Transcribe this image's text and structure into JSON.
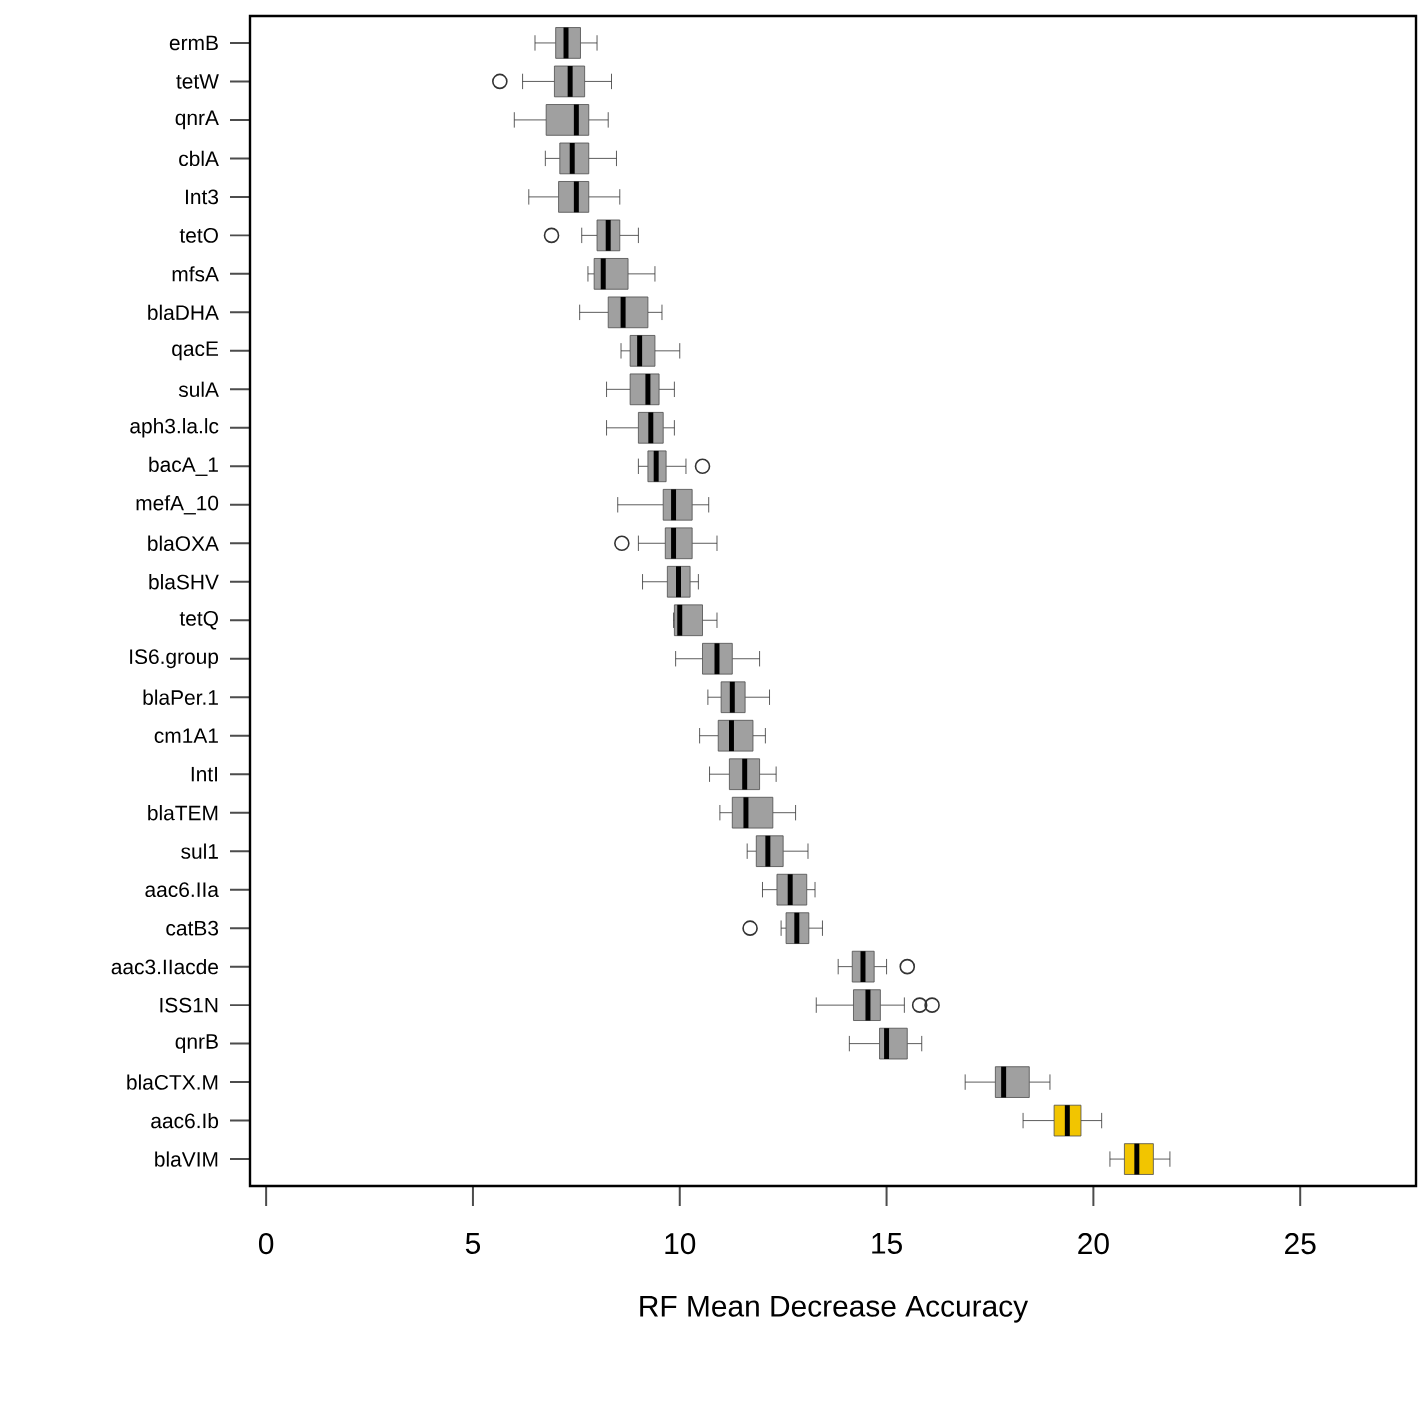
{
  "chart_data": {
    "type": "box",
    "orientation": "horizontal",
    "xlabel": "RF Mean Decrease Accuracy",
    "xlim": [
      -0.39,
      27.8
    ],
    "xticks": [
      0,
      5,
      10,
      15,
      20,
      25
    ],
    "grid": false,
    "categories": [
      "ermB",
      "tetW",
      "qnrA",
      "cblA",
      "Int3",
      "tetO",
      "mfsA",
      "blaDHA",
      "qacE",
      "sulA",
      "aph3.la.lc",
      "bacA_1",
      "mefA_10",
      "blaOXA",
      "blaSHV",
      "tetQ",
      "IS6.group",
      "blaPer.1",
      "cm1A1",
      "IntI",
      "blaTEM",
      "sul1",
      "aac6.IIa",
      "catB3",
      "aac3.IIacde",
      "ISS1N",
      "qnrB",
      "blaCTX.M",
      "aac6.Ib",
      "blaVIM"
    ],
    "colors": [
      "#a0a0a0",
      "#a0a0a0",
      "#a0a0a0",
      "#a0a0a0",
      "#a0a0a0",
      "#a0a0a0",
      "#a0a0a0",
      "#a0a0a0",
      "#a0a0a0",
      "#a0a0a0",
      "#a0a0a0",
      "#a0a0a0",
      "#a0a0a0",
      "#a0a0a0",
      "#a0a0a0",
      "#a0a0a0",
      "#a0a0a0",
      "#a0a0a0",
      "#a0a0a0",
      "#a0a0a0",
      "#a0a0a0",
      "#a0a0a0",
      "#a0a0a0",
      "#a0a0a0",
      "#a0a0a0",
      "#a0a0a0",
      "#a0a0a0",
      "#a0a0a0",
      "#f2c500",
      "#f2c500"
    ],
    "boxes": [
      {
        "low": 6.5,
        "q1": 7.0,
        "median": 7.25,
        "q3": 7.6,
        "high": 8.0
      },
      {
        "low": 6.2,
        "q1": 6.97,
        "median": 7.35,
        "q3": 7.7,
        "high": 8.35,
        "outliers": [
          5.65
        ]
      },
      {
        "low": 6.0,
        "q1": 6.77,
        "median": 7.5,
        "q3": 7.8,
        "high": 8.27
      },
      {
        "low": 6.75,
        "q1": 7.1,
        "median": 7.4,
        "q3": 7.8,
        "high": 8.47
      },
      {
        "low": 6.35,
        "q1": 7.07,
        "median": 7.5,
        "q3": 7.8,
        "high": 8.55
      },
      {
        "low": 7.63,
        "q1": 8.0,
        "median": 8.27,
        "q3": 8.55,
        "high": 9.0,
        "outliers": [
          6.9
        ]
      },
      {
        "low": 7.78,
        "q1": 7.93,
        "median": 8.15,
        "q3": 8.75,
        "high": 9.4
      },
      {
        "low": 7.58,
        "q1": 8.27,
        "median": 8.63,
        "q3": 9.23,
        "high": 9.57
      },
      {
        "low": 8.58,
        "q1": 8.8,
        "median": 9.03,
        "q3": 9.4,
        "high": 10.0
      },
      {
        "low": 8.23,
        "q1": 8.8,
        "median": 9.23,
        "q3": 9.5,
        "high": 9.87
      },
      {
        "low": 8.23,
        "q1": 9.0,
        "median": 9.3,
        "q3": 9.6,
        "high": 9.87
      },
      {
        "low": 9.0,
        "q1": 9.23,
        "median": 9.43,
        "q3": 9.67,
        "high": 10.15,
        "outliers": [
          10.55
        ]
      },
      {
        "low": 8.5,
        "q1": 9.6,
        "median": 9.85,
        "q3": 10.3,
        "high": 10.7
      },
      {
        "low": 9.0,
        "q1": 9.65,
        "median": 9.85,
        "q3": 10.3,
        "high": 10.9,
        "outliers": [
          8.6
        ]
      },
      {
        "low": 9.1,
        "q1": 9.7,
        "median": 9.97,
        "q3": 10.25,
        "high": 10.45
      },
      {
        "low": 9.85,
        "q1": 9.87,
        "median": 10.0,
        "q3": 10.55,
        "high": 10.9
      },
      {
        "low": 9.9,
        "q1": 10.55,
        "median": 10.9,
        "q3": 11.27,
        "high": 11.93
      },
      {
        "low": 10.68,
        "q1": 11.0,
        "median": 11.27,
        "q3": 11.58,
        "high": 12.17
      },
      {
        "low": 10.48,
        "q1": 10.93,
        "median": 11.25,
        "q3": 11.77,
        "high": 12.07
      },
      {
        "low": 10.72,
        "q1": 11.2,
        "median": 11.57,
        "q3": 11.93,
        "high": 12.33
      },
      {
        "low": 10.97,
        "q1": 11.27,
        "median": 11.6,
        "q3": 12.25,
        "high": 12.8
      },
      {
        "low": 11.63,
        "q1": 11.85,
        "median": 12.13,
        "q3": 12.5,
        "high": 13.1
      },
      {
        "low": 12.0,
        "q1": 12.35,
        "median": 12.67,
        "q3": 13.07,
        "high": 13.27
      },
      {
        "low": 12.45,
        "q1": 12.57,
        "median": 12.83,
        "q3": 13.12,
        "high": 13.45,
        "outliers": [
          11.7
        ]
      },
      {
        "low": 13.83,
        "q1": 14.17,
        "median": 14.43,
        "q3": 14.7,
        "high": 15.0,
        "outliers": [
          15.5
        ]
      },
      {
        "low": 13.3,
        "q1": 14.2,
        "median": 14.55,
        "q3": 14.85,
        "high": 15.43,
        "outliers": [
          15.8,
          16.1
        ]
      },
      {
        "low": 14.1,
        "q1": 14.83,
        "median": 15.0,
        "q3": 15.5,
        "high": 15.85
      },
      {
        "low": 16.9,
        "q1": 17.63,
        "median": 17.83,
        "q3": 18.45,
        "high": 18.95
      },
      {
        "low": 18.3,
        "q1": 19.05,
        "median": 19.37,
        "q3": 19.7,
        "high": 20.2
      },
      {
        "low": 20.4,
        "q1": 20.75,
        "median": 21.05,
        "q3": 21.45,
        "high": 21.85
      }
    ]
  }
}
